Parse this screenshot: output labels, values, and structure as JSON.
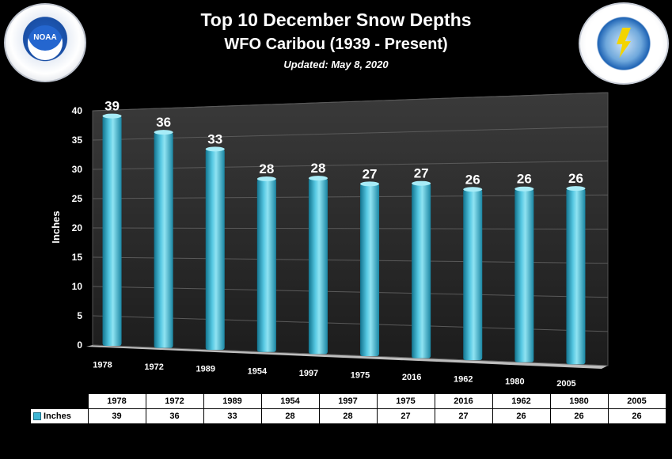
{
  "header": {
    "title": "Top 10 December Snow Depths",
    "subtitle": "WFO Caribou (1939 - Present)",
    "updated": "Updated:  May 8, 2020"
  },
  "logos": {
    "left": {
      "icon": "noaa-logo",
      "text": "NOAA"
    },
    "right": {
      "icon": "nws-logo"
    }
  },
  "colors": {
    "bar_top": "#8fe3f2",
    "bar_mid": "#39b7d6",
    "bar_dark": "#12748f",
    "background": "#000000",
    "wall": "#2a2a2a"
  },
  "chart_data": {
    "type": "bar",
    "title": "Top 10 December Snow Depths",
    "subtitle": "WFO Caribou (1939 - Present)",
    "xlabel": "",
    "ylabel": "Inches",
    "ylim": [
      0,
      40
    ],
    "yticks": [
      0,
      5,
      10,
      15,
      20,
      25,
      30,
      35,
      40
    ],
    "categories": [
      "1978",
      "1972",
      "1989",
      "1954",
      "1997",
      "1975",
      "2016",
      "1962",
      "1980",
      "2005"
    ],
    "series": [
      {
        "name": "Inches",
        "values": [
          39,
          36,
          33,
          28,
          28,
          27,
          27,
          26,
          26,
          26
        ]
      }
    ],
    "grid": true,
    "data_labels": true,
    "data_table": true
  },
  "table": {
    "legend_label": "Inches"
  }
}
